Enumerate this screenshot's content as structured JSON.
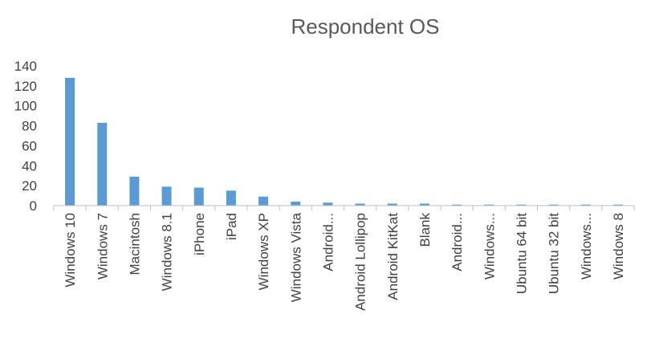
{
  "chart_data": {
    "type": "bar",
    "title": "Respondent OS",
    "xlabel": "",
    "ylabel": "",
    "ylim": [
      0,
      140
    ],
    "yticks": [
      0,
      20,
      40,
      60,
      80,
      100,
      120,
      140
    ],
    "grid": false,
    "categories": [
      "Windows 10",
      "Windows 7",
      "Macintosh",
      "Windows 8.1",
      "iPhone",
      "iPad",
      "Windows XP",
      "Windows Vista",
      "Android...",
      "Android Lollipop",
      "Android KitKat",
      "Blank",
      "Android...",
      "Windows...",
      "Ubuntu 64 bit",
      "Ubuntu 32 bit",
      "Windows...",
      "Windows 8"
    ],
    "values": [
      128,
      83,
      29,
      19,
      18,
      15,
      9,
      4,
      3,
      2,
      2,
      2,
      1,
      1,
      1,
      1,
      1,
      1
    ],
    "colors": {
      "bar": "#5B9BD5",
      "axis": "#BFBFBF",
      "text": "#404040",
      "title": "#595959"
    }
  }
}
